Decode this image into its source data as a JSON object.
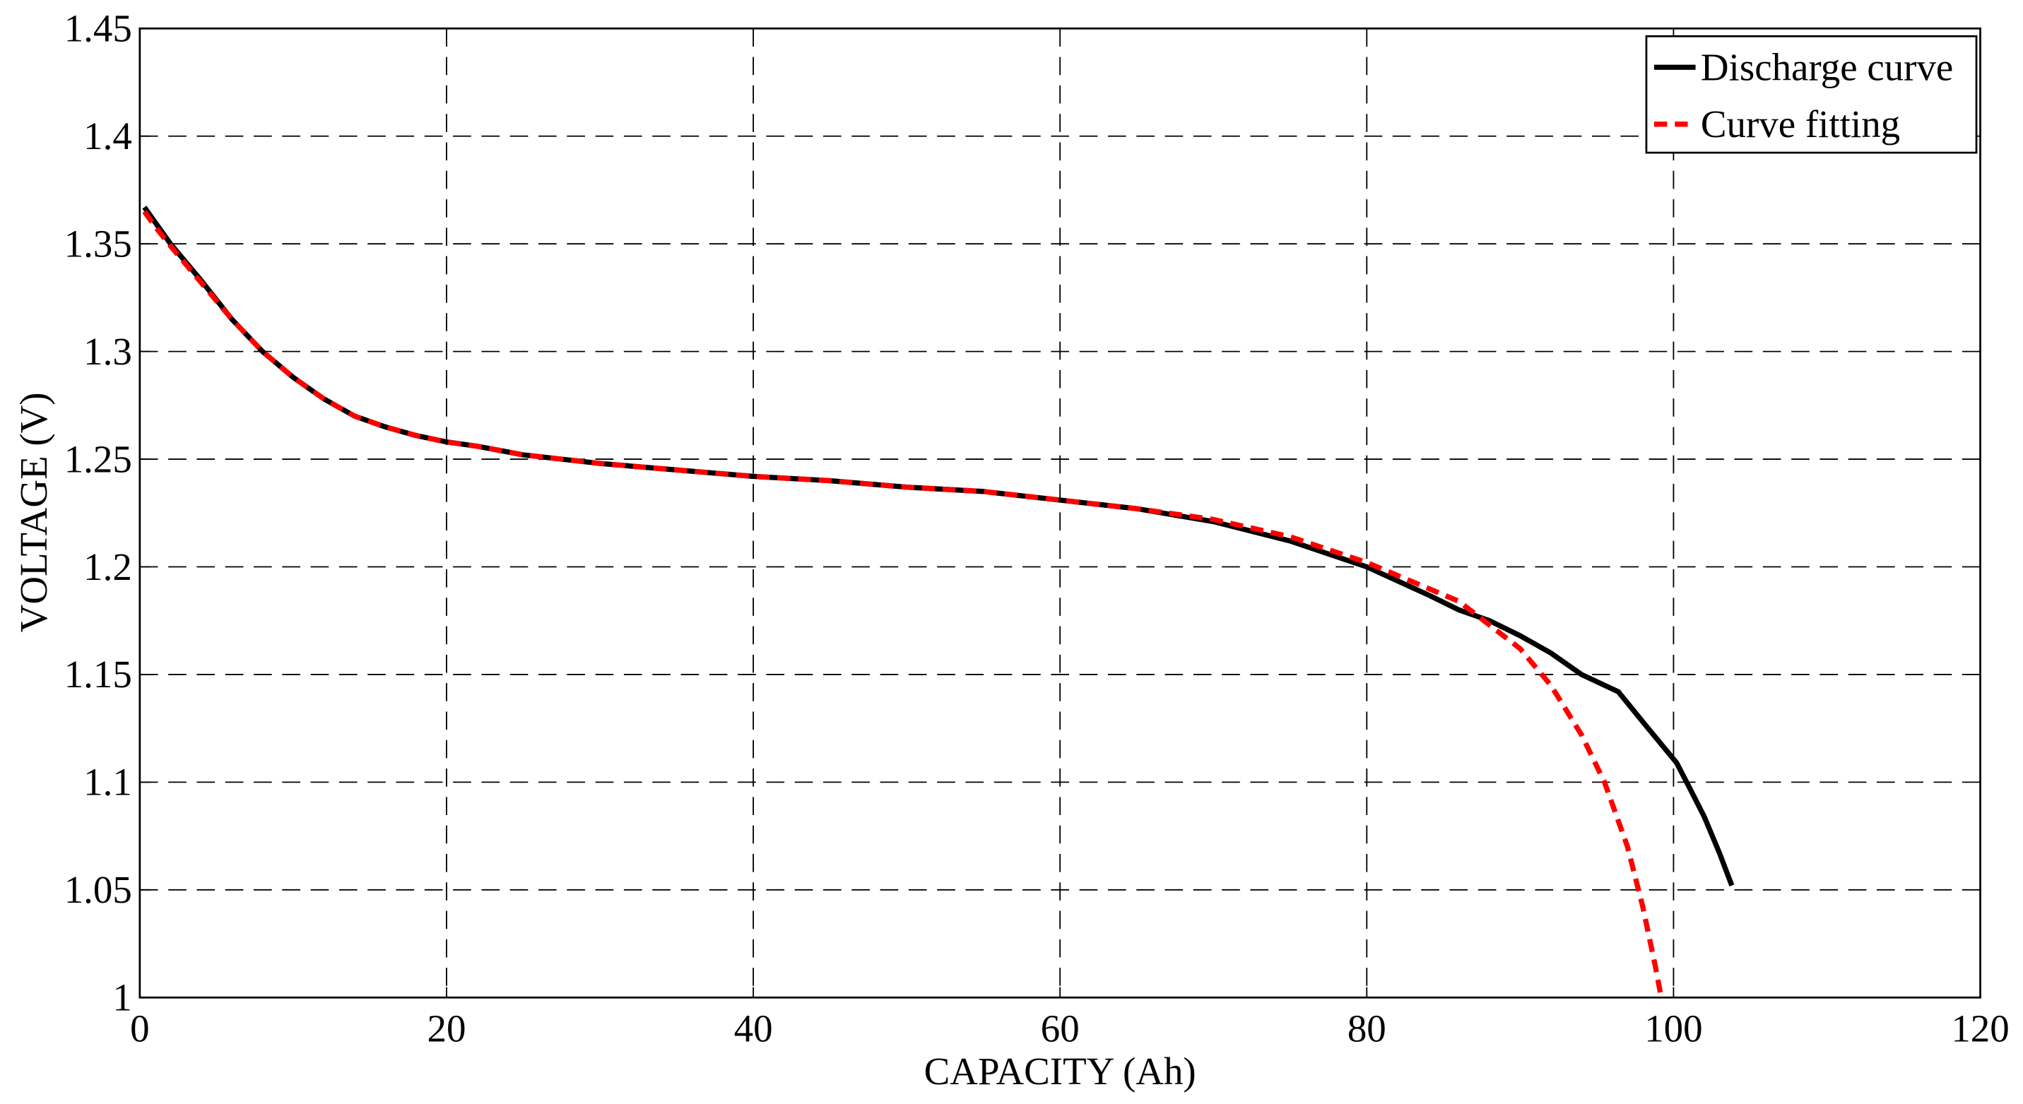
{
  "chart_data": {
    "type": "line",
    "xlabel": "CAPACITY (Ah)",
    "ylabel": "VOLTAGE (V)",
    "xlim": [
      0,
      120
    ],
    "xticks": [
      0,
      20,
      40,
      60,
      80,
      100,
      120
    ],
    "ylim": [
      1,
      1.45
    ],
    "yticks": [
      1,
      1.05,
      1.1,
      1.15,
      1.2,
      1.25,
      1.3,
      1.35,
      1.4,
      1.45
    ],
    "grid": true,
    "legend": "upper right",
    "series": [
      {
        "name": "Discharge curve",
        "color": "#000000",
        "style": "solid",
        "x": [
          0.3,
          1,
          2,
          4,
          6,
          8,
          10,
          12,
          14,
          16,
          18,
          20,
          22,
          25,
          30,
          35,
          40,
          45,
          50,
          55,
          60,
          65,
          70,
          75,
          80,
          84,
          86,
          88,
          90,
          92,
          94,
          96.4,
          98,
          100.2,
          101,
          102,
          103,
          103.8
        ],
        "values": [
          1.367,
          1.36,
          1.35,
          1.333,
          1.315,
          1.3,
          1.288,
          1.278,
          1.27,
          1.265,
          1.261,
          1.258,
          1.256,
          1.252,
          1.248,
          1.245,
          1.242,
          1.24,
          1.237,
          1.235,
          1.231,
          1.227,
          1.221,
          1.212,
          1.2,
          1.187,
          1.18,
          1.175,
          1.168,
          1.16,
          1.15,
          1.142,
          1.128,
          1.109,
          1.098,
          1.084,
          1.067,
          1.052
        ]
      },
      {
        "name": "Curve fitting",
        "color": "#ff0000",
        "style": "dashed",
        "x": [
          0.3,
          1,
          2,
          4,
          6,
          8,
          10,
          12,
          14,
          16,
          18,
          20,
          22,
          25,
          30,
          35,
          40,
          45,
          50,
          55,
          60,
          65,
          70,
          75,
          80,
          84,
          86,
          88,
          90,
          92,
          94,
          95.5,
          97,
          98,
          98.8,
          99.2
        ],
        "values": [
          1.365,
          1.358,
          1.349,
          1.332,
          1.315,
          1.3,
          1.288,
          1.278,
          1.27,
          1.265,
          1.261,
          1.258,
          1.256,
          1.252,
          1.248,
          1.245,
          1.242,
          1.24,
          1.237,
          1.235,
          1.231,
          1.227,
          1.222,
          1.214,
          1.202,
          1.19,
          1.184,
          1.173,
          1.162,
          1.145,
          1.122,
          1.1,
          1.07,
          1.042,
          1.015,
          1.0
        ]
      }
    ]
  }
}
